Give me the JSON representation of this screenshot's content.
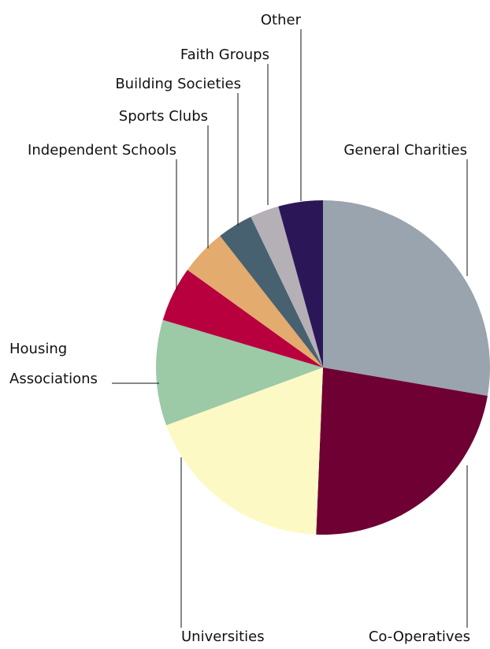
{
  "chart_data": {
    "type": "pie",
    "title": "",
    "start": "12-o'clock",
    "direction": "clockwise",
    "legend": "none",
    "slices": [
      {
        "label": "General Charities",
        "label_lines": [
          "General Charities"
        ],
        "value": 29.6,
        "color": "#9aa4ae"
      },
      {
        "label": "Co-Operatives",
        "label_lines": [
          "Co-Operatives"
        ],
        "value": 24.5,
        "color": "#6e0033"
      },
      {
        "label": "Universities",
        "label_lines": [
          "Universities"
        ],
        "value": 20.0,
        "color": "#fdf9c4"
      },
      {
        "label": "Housing Associations",
        "label_lines": [
          "Housing",
          "Associations"
        ],
        "value": 10.9,
        "color": "#9cc9a6"
      },
      {
        "label": "Independent Schools",
        "label_lines": [
          "Independent Schools"
        ],
        "value": 5.7,
        "color": "#b8003f"
      },
      {
        "label": "Sports Clubs",
        "label_lines": [
          "Sports Clubs"
        ],
        "value": 4.8,
        "color": "#e4ab6e"
      },
      {
        "label": "Building Societies",
        "label_lines": [
          "Building Societies"
        ],
        "value": 3.7,
        "color": "#476170"
      },
      {
        "label": "Faith Groups",
        "label_lines": [
          "Faith Groups"
        ],
        "value": 3.0,
        "color": "#b5afb6"
      },
      {
        "label": "Other",
        "label_lines": [
          "Other"
        ],
        "value": 4.6,
        "color": "#2b1758"
      }
    ]
  }
}
